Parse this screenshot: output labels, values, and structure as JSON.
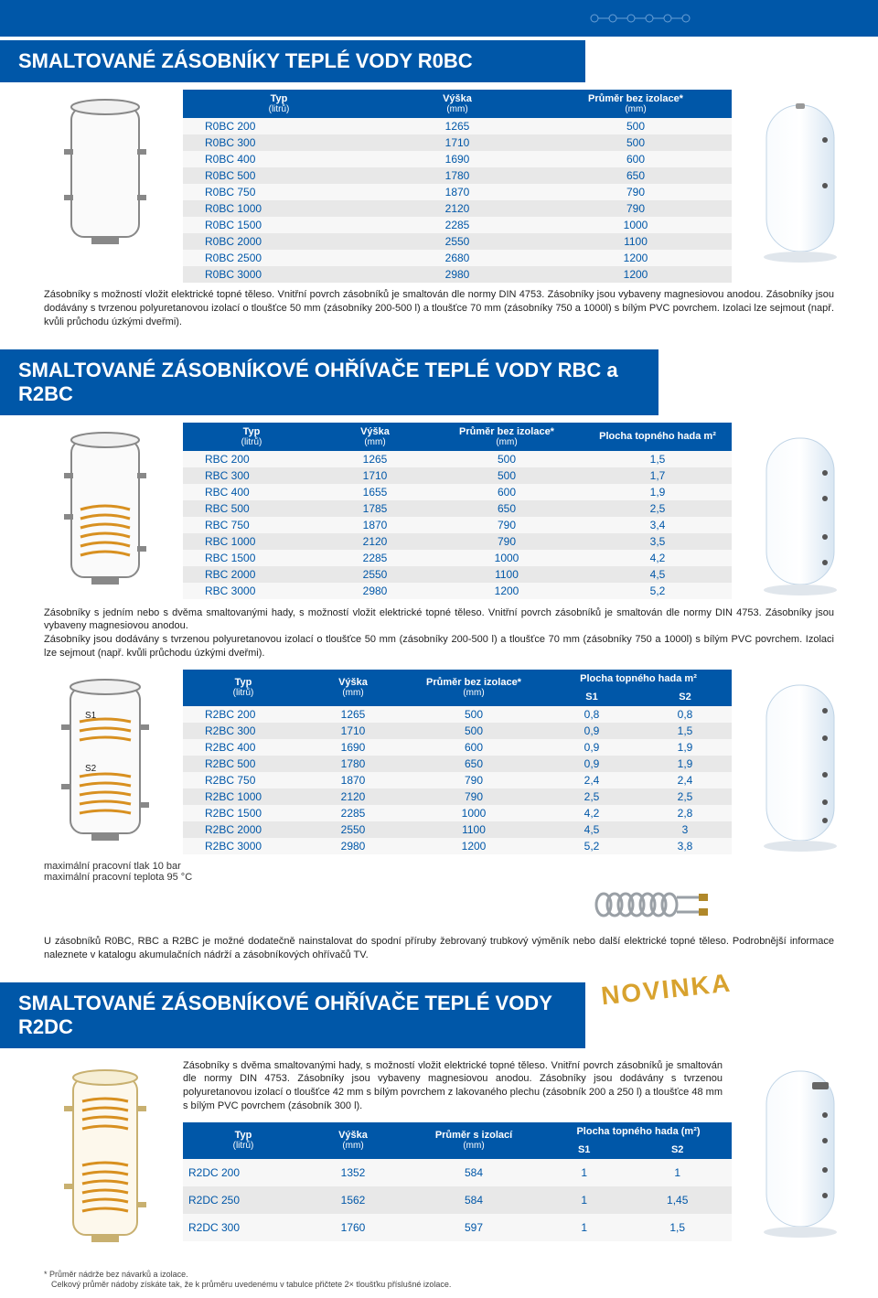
{
  "colors": {
    "primary": "#0057a8",
    "row_alt": "#e8e8e8",
    "row_base": "#f7f7f7",
    "text": "#222222",
    "novinka": "#d8a22e",
    "diagram_stroke": "#888888",
    "diagram_fill": "#ffffff",
    "diagram_coil": "#e8a030",
    "diagram_shade": "#f6e8c0",
    "photo_body": "#eef5fb",
    "photo_shadow": "#c9d8e6"
  },
  "typography": {
    "header_fontsize": 22,
    "body_fontsize": 12,
    "desc_fontsize": 11,
    "footnote_fontsize": 9
  },
  "headers": {
    "col_type": "Typ",
    "col_type_sub": "(litrů)",
    "col_height": "Výška",
    "col_height_sub": "(mm)",
    "col_diam_noiso": "Průměr bez izolace*",
    "col_diam_iso": "Průměr s izolací",
    "col_diam_sub": "(mm)",
    "col_coil": "Plocha topného hada m²",
    "col_coil2": "Plocha topného hada (m²)",
    "s1": "S1",
    "s2": "S2"
  },
  "sec1": {
    "title": "SMALTOVANÉ ZÁSOBNÍKY TEPLÉ VODY R0BC",
    "rows": [
      [
        "R0BC 200",
        "1265",
        "500"
      ],
      [
        "R0BC 300",
        "1710",
        "500"
      ],
      [
        "R0BC 400",
        "1690",
        "600"
      ],
      [
        "R0BC 500",
        "1780",
        "650"
      ],
      [
        "R0BC 750",
        "1870",
        "790"
      ],
      [
        "R0BC 1000",
        "2120",
        "790"
      ],
      [
        "R0BC 1500",
        "2285",
        "1000"
      ],
      [
        "R0BC 2000",
        "2550",
        "1100"
      ],
      [
        "R0BC 2500",
        "2680",
        "1200"
      ],
      [
        "R0BC 3000",
        "2980",
        "1200"
      ]
    ],
    "desc": "Zásobníky s možností vložit elektrické topné těleso. Vnitřní povrch zásobníků je smaltován dle normy DIN 4753. Zásobníky jsou vybaveny magnesiovou anodou. Zásobníky jsou dodávány s tvrzenou polyuretanovou izolací o tloušťce 50 mm (zásobníky 200-500 l) a tloušťce 70 mm (zásobníky 750 a 1000l) s bílým PVC povrchem. Izolaci lze sejmout (např. kvůli průchodu úzkými dveřmi)."
  },
  "sec2": {
    "title": "SMALTOVANÉ ZÁSOBNÍKOVÉ OHŘÍVAČE TEPLÉ VODY RBC a R2BC",
    "rows": [
      [
        "RBC 200",
        "1265",
        "500",
        "1,5"
      ],
      [
        "RBC 300",
        "1710",
        "500",
        "1,7"
      ],
      [
        "RBC 400",
        "1655",
        "600",
        "1,9"
      ],
      [
        "RBC 500",
        "1785",
        "650",
        "2,5"
      ],
      [
        "RBC 750",
        "1870",
        "790",
        "3,4"
      ],
      [
        "RBC 1000",
        "2120",
        "790",
        "3,5"
      ],
      [
        "RBC 1500",
        "2285",
        "1000",
        "4,2"
      ],
      [
        "RBC 2000",
        "2550",
        "1100",
        "4,5"
      ],
      [
        "RBC 3000",
        "2980",
        "1200",
        "5,2"
      ]
    ],
    "desc": "Zásobníky s jedním nebo s dvěma smaltovanými hady, s možností vložit elektrické topné těleso. Vnitřní povrch zásobníků je smaltován dle normy DIN 4753. Zásobníky jsou vybaveny magnesiovou anodou.\nZásobníky jsou dodávány s tvrzenou polyuretanovou izolací o tloušťce 50 mm (zásobníky 200-500 l) a tloušťce 70 mm (zásobníky 750 a 1000l) s bílým PVC povrchem. Izolaci lze sejmout (např. kvůli průchodu úzkými dveřmi)."
  },
  "sec3": {
    "rows": [
      [
        "R2BC 200",
        "1265",
        "500",
        "0,8",
        "0,8"
      ],
      [
        "R2BC 300",
        "1710",
        "500",
        "0,9",
        "1,5"
      ],
      [
        "R2BC 400",
        "1690",
        "600",
        "0,9",
        "1,9"
      ],
      [
        "R2BC 500",
        "1780",
        "650",
        "0,9",
        "1,9"
      ],
      [
        "R2BC 750",
        "1870",
        "790",
        "2,4",
        "2,4"
      ],
      [
        "R2BC 1000",
        "2120",
        "790",
        "2,5",
        "2,5"
      ],
      [
        "R2BC 1500",
        "2285",
        "1000",
        "4,2",
        "2,8"
      ],
      [
        "R2BC 2000",
        "2550",
        "1100",
        "4,5",
        "3"
      ],
      [
        "R2BC 3000",
        "2980",
        "1200",
        "5,2",
        "3,8"
      ]
    ],
    "notes": {
      "pressure": "maximální pracovní tlak 10 bar",
      "temp": "maximální pracovní teplota 95 °C"
    },
    "desc": "U zásobníků R0BC, RBC a R2BC je možné dodatečně nainstalovat do spodní příruby žebrovaný trubkový výměník nebo další elektrické topné těleso. Podrobnější informace naleznete v katalogu akumulačních nádrží a zásobníkových ohřívačů TV."
  },
  "sec4": {
    "title": "SMALTOVANÉ ZÁSOBNÍKOVÉ OHŘÍVAČE TEPLÉ VODY R2DC",
    "novinka": "NOVINKA",
    "desc": "Zásobníky s dvěma smaltovanými hady, s možností vložit elektrické topné těleso. Vnitřní povrch zásobníků je smaltován dle normy DIN 4753. Zásobníky jsou vybaveny magnesiovou anodou.\nZásobníky jsou dodávány s tvrzenou polyuretanovou izolací o tloušťce 42 mm s bílým povrchem z lakovaného plechu (zásobník 200 a 250 l) a tloušťce 48 mm s bílým PVC povrchem (zásobník 300 l).",
    "rows": [
      [
        "R2DC 200",
        "1352",
        "584",
        "1",
        "1"
      ],
      [
        "R2DC 250",
        "1562",
        "584",
        "1",
        "1,45"
      ],
      [
        "R2DC 300",
        "1760",
        "597",
        "1",
        "1,5"
      ]
    ]
  },
  "foot": {
    "l1": "* Průměr nádrže bez návarků a izolace.",
    "l2": "Celkový průměr nádoby získáte tak, že k průměru uvedenému v tabulce přičtete 2× tloušťku příslušné izolace."
  },
  "diagram_labels": {
    "s1": "S1",
    "s2": "S2"
  }
}
